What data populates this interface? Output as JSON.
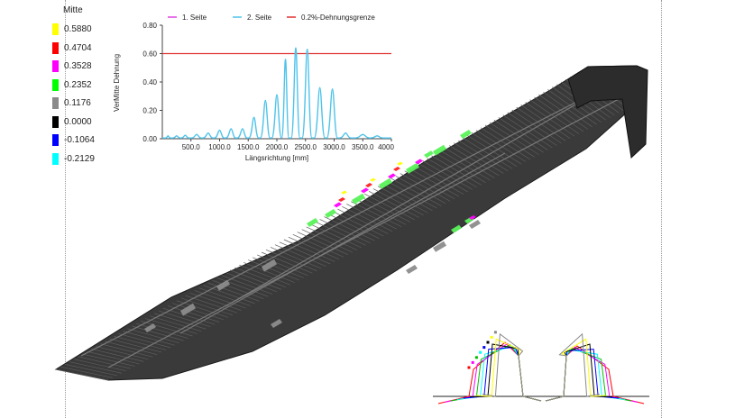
{
  "legend": {
    "title": "Mitte",
    "entries": [
      {
        "value": "0.5880",
        "color": "#ffff00"
      },
      {
        "value": "0.4704",
        "color": "#ff0000"
      },
      {
        "value": "0.3528",
        "color": "#ff00ff"
      },
      {
        "value": "0.2352",
        "color": "#00ff00"
      },
      {
        "value": "0.1176",
        "color": "#8a8a8a"
      },
      {
        "value": "0.0000",
        "color": "#000000"
      },
      {
        "value": "-0.1064",
        "color": "#0000ff"
      },
      {
        "value": "-0.2129",
        "color": "#00ffff"
      }
    ]
  },
  "chart_data": {
    "type": "line",
    "title": "",
    "xlabel": "Längsrichtung [mm]",
    "ylabel": "VerMitte Dehnung",
    "xlim": [
      0,
      4000
    ],
    "ylim": [
      0,
      0.8
    ],
    "xticks": [
      "500.0",
      "1000.0",
      "1500.0",
      "2000.0",
      "2500.0",
      "3000.0",
      "3500.0",
      "4000"
    ],
    "yticks": [
      "0.00",
      "0.20",
      "0.40",
      "0.60",
      "0.80"
    ],
    "legend_position": "top",
    "series": [
      {
        "name": "1. Seite",
        "color": "#e040e0",
        "x": [],
        "y": []
      },
      {
        "name": "2. Seite",
        "color": "#4fc3ea",
        "peaks": [
          {
            "x": 100,
            "y": 0.02
          },
          {
            "x": 250,
            "y": 0.02
          },
          {
            "x": 400,
            "y": 0.025
          },
          {
            "x": 600,
            "y": 0.03
          },
          {
            "x": 800,
            "y": 0.04
          },
          {
            "x": 1000,
            "y": 0.06
          },
          {
            "x": 1200,
            "y": 0.07
          },
          {
            "x": 1400,
            "y": 0.07
          },
          {
            "x": 1600,
            "y": 0.15
          },
          {
            "x": 1800,
            "y": 0.27
          },
          {
            "x": 2000,
            "y": 0.31
          },
          {
            "x": 2150,
            "y": 0.56
          },
          {
            "x": 2330,
            "y": 0.64
          },
          {
            "x": 2530,
            "y": 0.63
          },
          {
            "x": 2750,
            "y": 0.36
          },
          {
            "x": 2970,
            "y": 0.35
          },
          {
            "x": 3200,
            "y": 0.04
          },
          {
            "x": 3500,
            "y": 0.03
          },
          {
            "x": 3750,
            "y": 0.02
          }
        ]
      },
      {
        "name": "0.2%-Dehnungsgrenze",
        "color": "#e03030",
        "x": [
          0,
          4000
        ],
        "y": [
          0.6,
          0.6
        ]
      }
    ]
  },
  "colors": {
    "mesh": "#3a3a3a",
    "grey": "#8c8c8c",
    "green": "#59f259",
    "magenta": "#ff00ff",
    "red": "#ff2020",
    "yellow": "#ffff00"
  }
}
